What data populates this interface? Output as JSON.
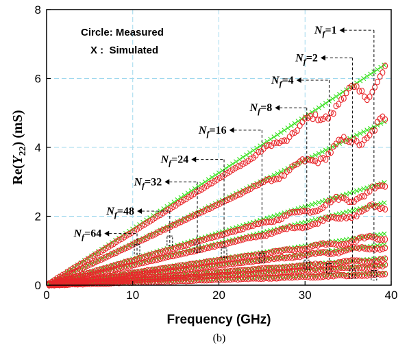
{
  "chart_data": {
    "type": "scatter",
    "caption": "(b)",
    "xlabel": "Frequency (GHz)",
    "ylabel": {
      "pre": "Re(",
      "sym": "Y",
      "sub": "22",
      "post": ") (mS)"
    },
    "xlim": [
      0,
      40
    ],
    "ylim": [
      0,
      8
    ],
    "xticks": [
      "0",
      "10",
      "20",
      "30",
      "40"
    ],
    "yticks": [
      "0",
      "2",
      "4",
      "6",
      "8"
    ],
    "grid": true,
    "legend": {
      "line1": "Circle: Measured",
      "line2": "X :  Simulated",
      "placement": "top-left"
    },
    "colors": {
      "measured": "#e8262a",
      "simulated": "#33e01a",
      "grid": "#9fd8ee"
    },
    "series": [
      {
        "nf": "1",
        "sim_slope": 0.163,
        "meas_slope": 0.155,
        "fingers": 1
      },
      {
        "nf": "2",
        "sim_slope": 0.121,
        "meas_slope": 0.118,
        "fingers": 2
      },
      {
        "nf": "4",
        "sim_slope": 0.076,
        "meas_slope": 0.072,
        "fingers": 4
      },
      {
        "nf": "8",
        "sim_slope": 0.061,
        "meas_slope": 0.058,
        "fingers": 8
      },
      {
        "nf": "16",
        "sim_slope": 0.038,
        "meas_slope": 0.036,
        "fingers": 16
      },
      {
        "nf": "24",
        "sim_slope": 0.03,
        "meas_slope": 0.029,
        "fingers": 24
      },
      {
        "nf": "32",
        "sim_slope": 0.02,
        "meas_slope": 0.019,
        "fingers": 32
      },
      {
        "nf": "48",
        "sim_slope": 0.015,
        "meas_slope": 0.014,
        "fingers": 48
      },
      {
        "nf": "64",
        "sim_slope": 0.009,
        "meas_slope": 0.008,
        "fingers": 64
      }
    ],
    "annotations": [
      {
        "nf": "1",
        "label_x": 37.5,
        "label_y": 7.4,
        "drop_x": 38.0,
        "drop_y": 0.15
      },
      {
        "nf": "2",
        "label_x": 35.3,
        "label_y": 6.6,
        "drop_x": 35.5,
        "drop_y": 0.2
      },
      {
        "nf": "4",
        "label_x": 32.5,
        "label_y": 5.95,
        "drop_x": 32.8,
        "drop_y": 0.35
      },
      {
        "nf": "8",
        "label_x": 30.0,
        "label_y": 5.15,
        "drop_x": 30.2,
        "drop_y": 0.45
      },
      {
        "nf": "16",
        "label_x": 24.7,
        "label_y": 4.5,
        "drop_x": 25.0,
        "drop_y": 0.65
      },
      {
        "nf": "24",
        "label_x": 20.3,
        "label_y": 3.65,
        "drop_x": 20.6,
        "drop_y": 0.8
      },
      {
        "nf": "32",
        "label_x": 17.2,
        "label_y": 3.0,
        "drop_x": 17.5,
        "drop_y": 0.95
      },
      {
        "nf": "48",
        "label_x": 14.0,
        "label_y": 2.15,
        "drop_x": 14.3,
        "drop_y": 1.15
      },
      {
        "nf": "64",
        "label_x": 10.2,
        "label_y": 1.5,
        "drop_x": 10.5,
        "drop_y": 0.9
      }
    ]
  }
}
